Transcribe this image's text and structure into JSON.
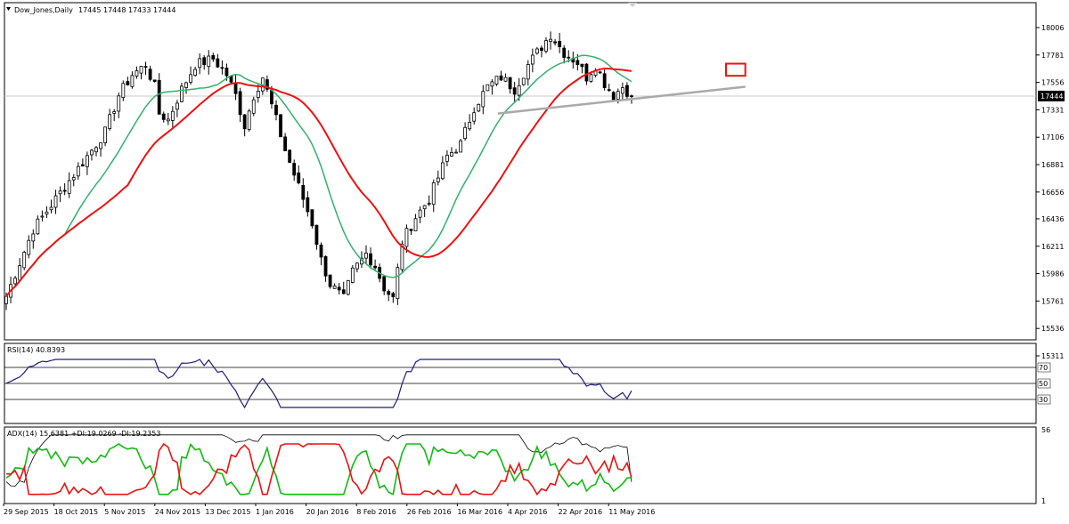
{
  "header": {
    "symbol_label": "Dow_Jones,Daily",
    "ohlc_label": "17445 17448 17433 17444",
    "collapse_icon": "triangle-down-icon"
  },
  "colors": {
    "ma_fast": "#2fb36a",
    "ma_slow": "#ee1111",
    "trendline": "#a9a9a9",
    "rsi": "#1e1e78",
    "adx": "#000000",
    "plus_di": "#11bb11",
    "minus_di": "#ee1111",
    "highlight_box": "#ee1111"
  },
  "chart_data": [
    {
      "type": "candlestick",
      "title": "Dow_Jones,Daily",
      "ohlc_last": {
        "open": 17445,
        "high": 17448,
        "low": 17433,
        "close": 17444
      },
      "current_price": 17444,
      "ylim": [
        15311,
        18006
      ],
      "y_ticks": [
        "18006",
        "17781",
        "17556",
        "17331",
        "17106",
        "16881",
        "16656",
        "16436",
        "16211",
        "15986",
        "15761",
        "15536",
        "15311"
      ],
      "x_ticks": [
        "29 Sep 2015",
        "18 Oct 2015",
        "5 Nov 2015",
        "24 Nov 2015",
        "13 Dec 2015",
        "1 Jan 2016",
        "20 Jan 2016",
        "8 Feb 2016",
        "26 Feb 2016",
        "16 Mar 2016",
        "4 Apr 2016",
        "22 Apr 2016",
        "11 May 2016"
      ],
      "close_keypoints": [
        [
          0,
          15800
        ],
        [
          6,
          16350
        ],
        [
          12,
          16650
        ],
        [
          18,
          16950
        ],
        [
          22,
          17150
        ],
        [
          25,
          17450
        ],
        [
          28,
          17620
        ],
        [
          31,
          17700
        ],
        [
          33,
          17520
        ],
        [
          34,
          17300
        ],
        [
          36,
          17250
        ],
        [
          39,
          17500
        ],
        [
          42,
          17700
        ],
        [
          46,
          17750
        ],
        [
          49,
          17620
        ],
        [
          51,
          17450
        ],
        [
          53,
          17200
        ],
        [
          55,
          17450
        ],
        [
          57,
          17600
        ],
        [
          60,
          17250
        ],
        [
          62,
          17000
        ],
        [
          65,
          16700
        ],
        [
          68,
          16400
        ],
        [
          70,
          16100
        ],
        [
          72,
          15900
        ],
        [
          75,
          15780
        ],
        [
          77,
          16000
        ],
        [
          80,
          16150
        ],
        [
          82,
          16050
        ],
        [
          84,
          15870
        ],
        [
          86,
          15780
        ],
        [
          88,
          16250
        ],
        [
          91,
          16450
        ],
        [
          94,
          16600
        ],
        [
          98,
          16950
        ],
        [
          101,
          17050
        ],
        [
          104,
          17350
        ],
        [
          107,
          17520
        ],
        [
          110,
          17600
        ],
        [
          113,
          17500
        ],
        [
          116,
          17700
        ],
        [
          119,
          17850
        ],
        [
          121,
          17950
        ],
        [
          124,
          17800
        ],
        [
          127,
          17720
        ],
        [
          129,
          17600
        ],
        [
          131,
          17700
        ],
        [
          133,
          17550
        ],
        [
          135,
          17450
        ],
        [
          137,
          17520
        ],
        [
          139,
          17450
        ]
      ],
      "series": [
        {
          "name": "",
          "role": "ma_fast"
        },
        {
          "name": "",
          "role": "ma_slow"
        }
      ],
      "annotations": [
        {
          "kind": "trendline",
          "from": {
            "x": "2016-02-29",
            "y": 17300
          },
          "to": {
            "x": "2016-05-16",
            "y": 17520
          }
        },
        {
          "kind": "box",
          "date_from": "2016-05-10",
          "date_to": "2016-05-16",
          "price_low": 17610,
          "price_high": 17710
        }
      ]
    },
    {
      "type": "line",
      "title": "RSI(14) 40.8393",
      "ylim": [
        0,
        100
      ],
      "levels": [
        70,
        50,
        30
      ],
      "value_last": 40.8393
    },
    {
      "type": "line",
      "title": "ADX(14) 15.6381 +DI:19.0269 -DI:19.2353",
      "ylim": [
        1,
        56
      ],
      "y_ticks": [
        "56",
        "1"
      ],
      "adx_last": 15.6381,
      "plus_di_last": 19.0269,
      "minus_di_last": 19.2353
    }
  ]
}
